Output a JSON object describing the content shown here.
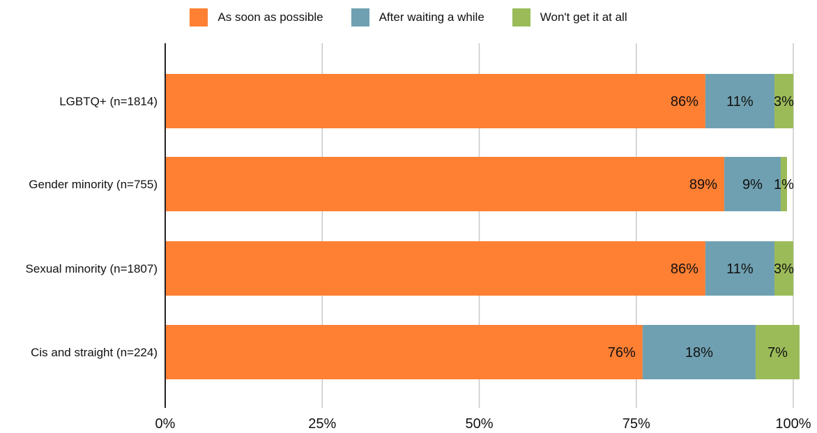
{
  "chart_data": {
    "type": "bar",
    "orientation": "horizontal",
    "stacked": true,
    "categories": [
      "LGBTQ+ (n=1814)",
      "Gender minority (n=755)",
      "Sexual minority (n=1807)",
      "Cis and straight (n=224)"
    ],
    "series": [
      {
        "name": "As soon as possible",
        "color": "#FF7F33",
        "values": [
          86,
          89,
          86,
          76
        ],
        "labels": [
          "86%",
          "89%",
          "86%",
          "76%"
        ]
      },
      {
        "name": "After waiting a while",
        "color": "#6FA0B1",
        "values": [
          11,
          9,
          11,
          18
        ],
        "labels": [
          "11%",
          "9%",
          "11%",
          "18%"
        ]
      },
      {
        "name": "Won't get it at all",
        "color": "#9BBB59",
        "values": [
          3,
          1,
          3,
          7
        ],
        "labels": [
          "3%",
          "1%",
          "3%",
          "7%"
        ]
      }
    ],
    "xlim": [
      0,
      100
    ],
    "x_ticks": [
      "0%",
      "25%",
      "50%",
      "75%",
      "100%"
    ],
    "x_tick_values": [
      0,
      25,
      50,
      75,
      100
    ],
    "grid": true,
    "legend_position": "top-center"
  }
}
